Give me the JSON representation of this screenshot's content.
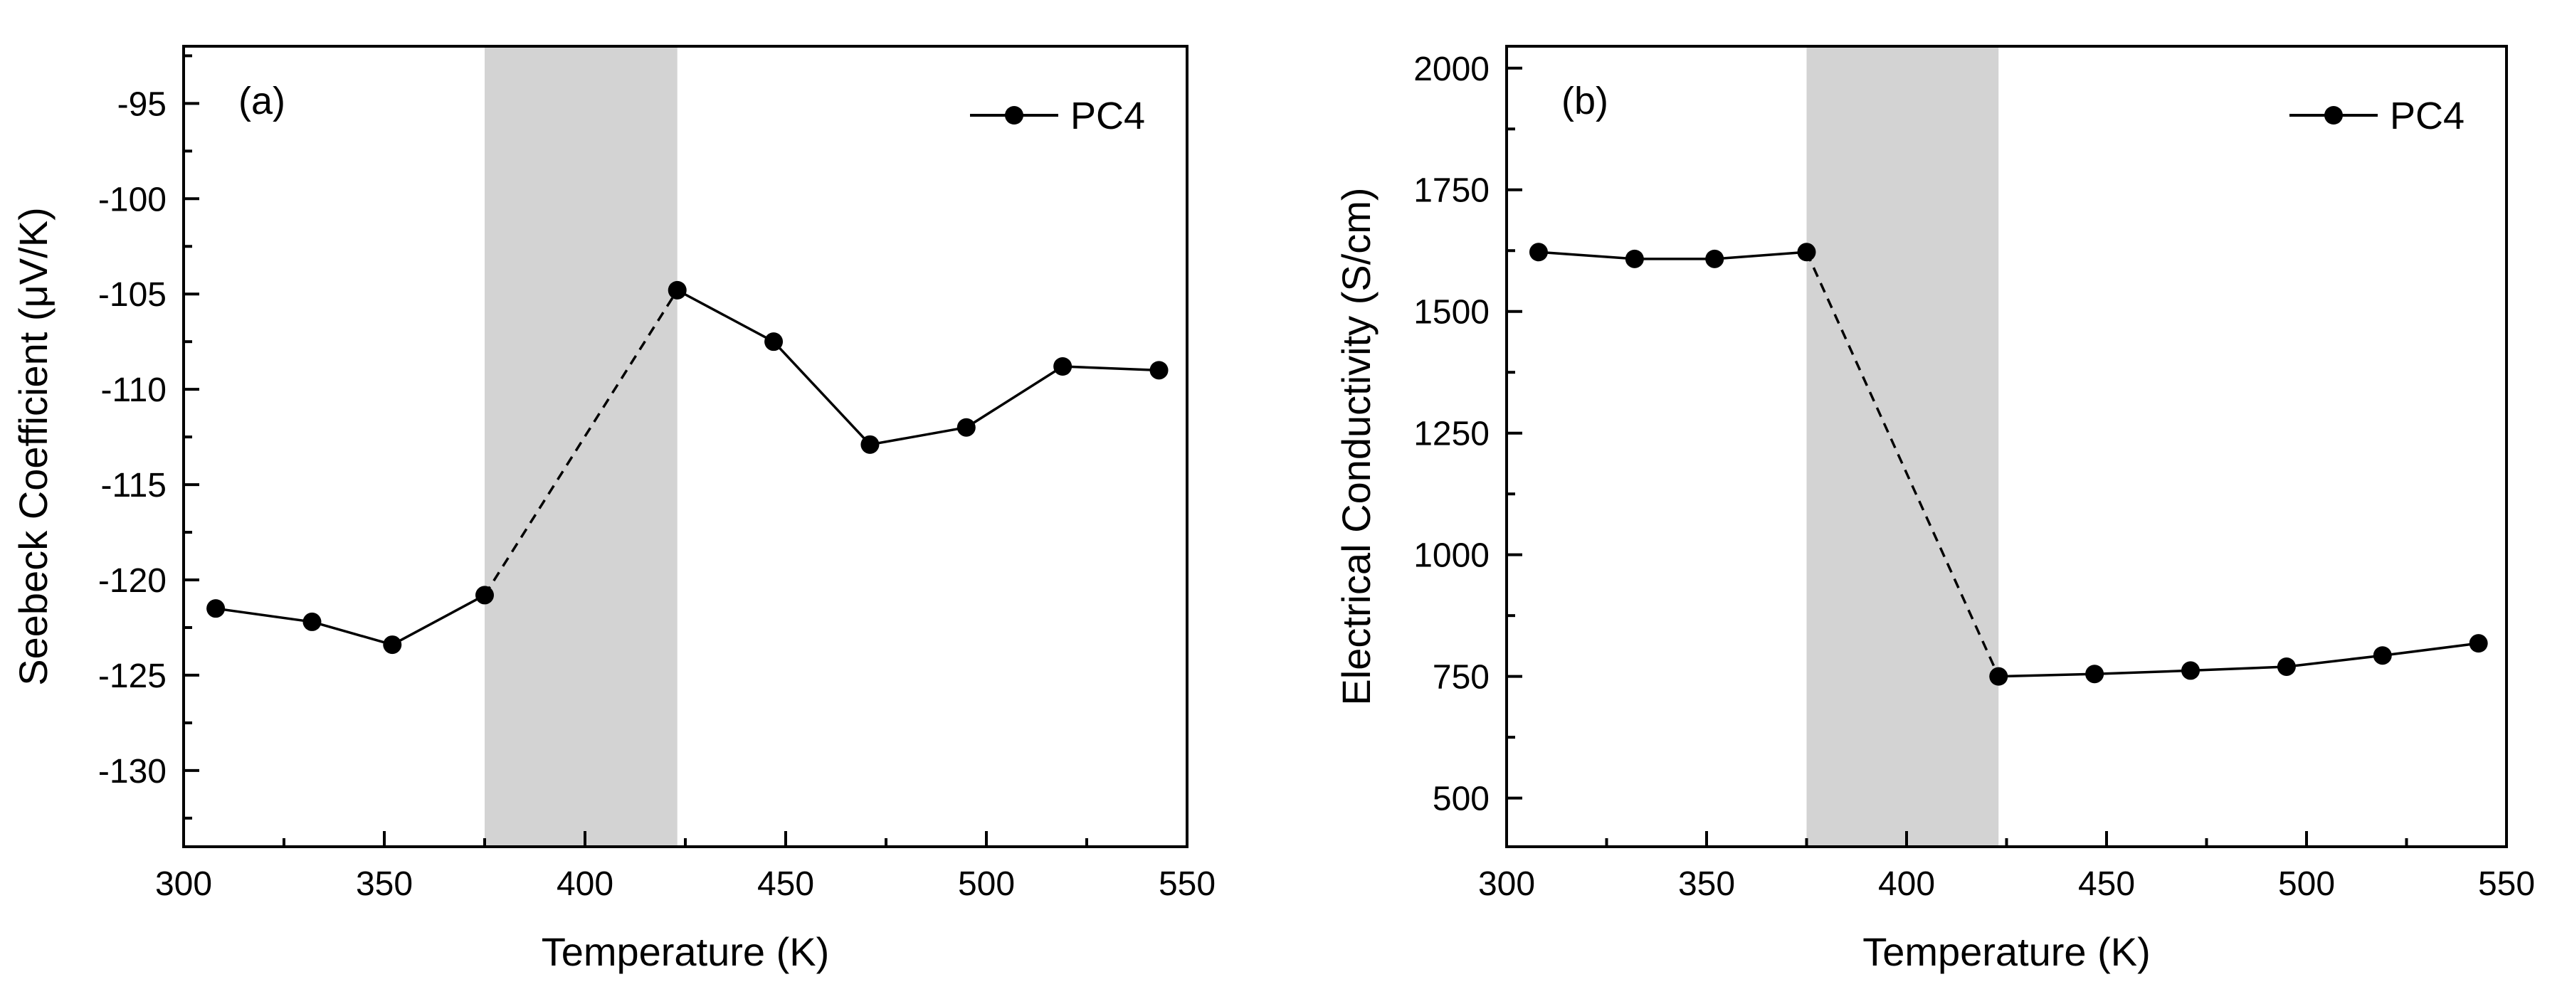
{
  "chart_data": [
    {
      "panel": "(a)",
      "type": "line",
      "title": "",
      "xlabel": "Temperature (K)",
      "ylabel": "Seebeck Coefficient (μV/K)",
      "xlim": [
        300,
        550
      ],
      "ylim": [
        -134,
        -92
      ],
      "xticks": [
        300,
        350,
        400,
        450,
        500,
        550
      ],
      "xtick_labels": [
        "300",
        "350",
        "400",
        "450",
        "500",
        "550"
      ],
      "yticks": [
        -130,
        -125,
        -120,
        -115,
        -110,
        -105,
        -100,
        -95
      ],
      "ytick_labels": [
        "-130",
        "-125",
        "-120",
        "-115",
        "-110",
        "-105",
        "-100",
        "-95"
      ],
      "shaded_region": {
        "x": [
          375,
          423
        ],
        "color": "#d3d3d3"
      },
      "grid": false,
      "legend": {
        "position": "top-right",
        "entries": [
          "PC4"
        ]
      },
      "series": [
        {
          "name": "PC4",
          "x": [
            308,
            332,
            352,
            375,
            423,
            447,
            471,
            495,
            519,
            543
          ],
          "y": [
            -121.5,
            -122.2,
            -123.4,
            -120.8,
            -104.8,
            -107.5,
            -112.9,
            -112.0,
            -108.8,
            -109.0
          ],
          "dashed_segments": [
            3
          ]
        }
      ]
    },
    {
      "panel": "(b)",
      "type": "line",
      "title": "",
      "xlabel": "Temperature (K)",
      "ylabel": "Electrical  Conductivity (S/cm)",
      "xlim": [
        300,
        550
      ],
      "ylim": [
        400,
        2045
      ],
      "xticks": [
        300,
        350,
        400,
        450,
        500,
        550
      ],
      "xtick_labels": [
        "300",
        "350",
        "400",
        "450",
        "500",
        "550"
      ],
      "yticks": [
        500,
        750,
        1000,
        1250,
        1500,
        1750,
        2000
      ],
      "ytick_labels": [
        "500",
        "750",
        "1000",
        "1250",
        "1500",
        "1750",
        "2000"
      ],
      "shaded_region": {
        "x": [
          375,
          423
        ],
        "color": "#d3d3d3"
      },
      "grid": false,
      "legend": {
        "position": "top-right",
        "entries": [
          "PC4"
        ]
      },
      "series": [
        {
          "name": "PC4",
          "x": [
            308,
            332,
            352,
            375,
            423,
            447,
            471,
            495,
            519,
            543
          ],
          "y": [
            1622,
            1608,
            1608,
            1622,
            750,
            755,
            762,
            770,
            793,
            818
          ],
          "dashed_segments": [
            3
          ]
        }
      ]
    }
  ]
}
